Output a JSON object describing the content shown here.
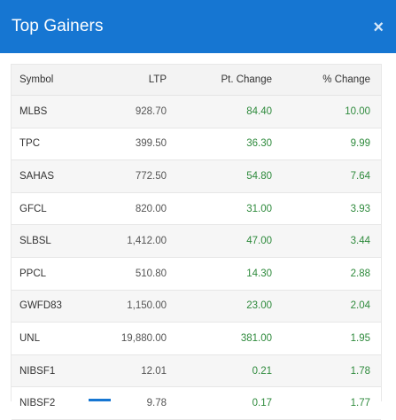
{
  "header": {
    "title": "Top Gainers",
    "close_icon": "×"
  },
  "table": {
    "columns": [
      "Symbol",
      "LTP",
      "Pt. Change",
      "% Change"
    ],
    "rows": [
      [
        "MLBS",
        "928.70",
        "84.40",
        "10.00"
      ],
      [
        "TPC",
        "399.50",
        "36.30",
        "9.99"
      ],
      [
        "SAHAS",
        "772.50",
        "54.80",
        "7.64"
      ],
      [
        "GFCL",
        "820.00",
        "31.00",
        "3.93"
      ],
      [
        "SLBSL",
        "1,412.00",
        "47.00",
        "3.44"
      ],
      [
        "PPCL",
        "510.80",
        "14.30",
        "2.88"
      ],
      [
        "GWFD83",
        "1,150.00",
        "23.00",
        "2.04"
      ],
      [
        "UNL",
        "19,880.00",
        "381.00",
        "1.95"
      ],
      [
        "NIBSF1",
        "12.01",
        "0.21",
        "1.78"
      ],
      [
        "NIBSF2",
        "9.78",
        "0.17",
        "1.77"
      ]
    ]
  },
  "colors": {
    "header_bg": "#1676d2",
    "positive": "#2e8a3c"
  }
}
